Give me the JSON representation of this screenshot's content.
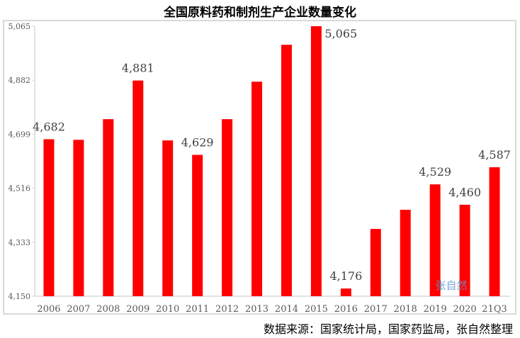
{
  "chart_data": {
    "type": "bar",
    "title": "全国原料药和制剂生产企业数量变化",
    "categories": [
      "2006",
      "2007",
      "2008",
      "2009",
      "2010",
      "2011",
      "2012",
      "2013",
      "2014",
      "2015",
      "2016",
      "2017",
      "2018",
      "2019",
      "2020",
      "21Q3"
    ],
    "values": [
      4682,
      4680,
      4750,
      4881,
      4678,
      4629,
      4750,
      4877,
      5002,
      5065,
      4176,
      4378,
      4443,
      4529,
      4460,
      4587
    ],
    "data_labels": {
      "2006": "4,682",
      "2009": "4,881",
      "2011": "4,629",
      "2015": "5,065",
      "2016": "4,176",
      "2019": "4,529",
      "2020": "4,460",
      "21Q3": "4,587"
    },
    "yticks": [
      "4,150",
      "4,333",
      "4,516",
      "4,699",
      "4,882",
      "5,065"
    ],
    "ylim": [
      4150,
      5065
    ],
    "xlabel": "",
    "ylabel": "",
    "grid": false,
    "bar_color": "#ff0000",
    "source": "数据来源：国家统计局，国家药监局，张自然整理",
    "watermark": "张自然"
  }
}
